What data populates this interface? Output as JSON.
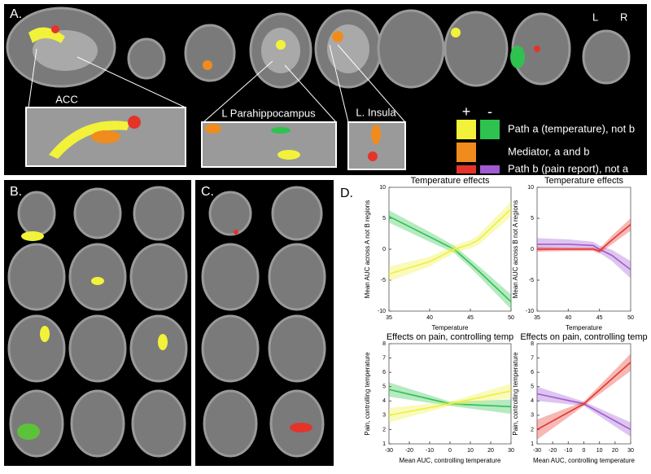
{
  "figure": {
    "panel_labels": [
      "A.",
      "B.",
      "C.",
      "D."
    ],
    "orientation": [
      "L",
      "R"
    ],
    "inset_labels": [
      "ACC",
      "L Parahippocampus",
      "L. Insula"
    ],
    "legend": {
      "signs": [
        "+",
        "-"
      ],
      "items": [
        "Path a (temperature), not b",
        "Mediator, a and b",
        "Path b (pain report), not a"
      ]
    }
  },
  "chart_data": [
    {
      "type": "line",
      "title": "Temperature effects",
      "ylabel": "Mean AUC across A not B regions",
      "xlabel": "Temperature",
      "x": [
        35,
        40,
        43,
        45,
        46,
        50
      ],
      "xlim": [
        35,
        50
      ],
      "xticks": [
        35,
        40,
        45,
        50
      ],
      "ylim": [
        -10,
        10
      ],
      "yticks": [
        -10,
        -5,
        0,
        5,
        10
      ],
      "series": [
        {
          "color": "#2ec24f",
          "values": [
            5.3,
            2,
            0,
            -2.3,
            -3.5,
            -8.5
          ],
          "errors": [
            1,
            0.8,
            0.6,
            0.7,
            0.8,
            1.2
          ]
        },
        {
          "color": "#eef03c",
          "values": [
            -4,
            -2,
            0,
            0.8,
            1.5,
            6.5
          ],
          "errors": [
            1.2,
            0.8,
            0.6,
            0.7,
            0.8,
            1.2
          ]
        }
      ]
    },
    {
      "type": "line",
      "title": "Temperature effects",
      "ylabel": "Mean AUC across B not A regions",
      "xlabel": "Temperature",
      "x": [
        35,
        40,
        44,
        45,
        47,
        50
      ],
      "xlim": [
        35,
        50
      ],
      "xticks": [
        35,
        40,
        45,
        50
      ],
      "ylim": [
        -10,
        10
      ],
      "yticks": [
        -10,
        -5,
        0,
        5,
        10
      ],
      "series": [
        {
          "color": "#a05ad2",
          "values": [
            0.8,
            0.8,
            0.6,
            0,
            -1,
            -3.3
          ],
          "errors": [
            1,
            0.8,
            0.6,
            0.6,
            0.9,
            1.4
          ]
        },
        {
          "color": "#e5332a",
          "values": [
            0,
            0,
            0,
            -0.3,
            1.5,
            4
          ],
          "errors": [
            0.4,
            0.3,
            0.3,
            0.4,
            0.7,
            1
          ]
        }
      ]
    },
    {
      "type": "line",
      "title": "Effects on pain, controlling temp",
      "ylabel": "Pain, controlling temperature",
      "xlabel": "Mean AUC, controlling temperature",
      "x": [
        -30,
        0,
        30
      ],
      "xlim": [
        -30,
        30
      ],
      "xticks": [
        -30,
        -20,
        -10,
        0,
        10,
        20,
        30
      ],
      "ylim": [
        1,
        8
      ],
      "yticks": [
        1,
        2,
        3,
        4,
        5,
        6,
        7,
        8
      ],
      "series": [
        {
          "color": "#2ec24f",
          "values": [
            4.8,
            3.8,
            3.6
          ],
          "errors": [
            0.5,
            0.15,
            0.5
          ]
        },
        {
          "color": "#eef03c",
          "values": [
            3,
            3.8,
            4.7
          ],
          "errors": [
            0.5,
            0.15,
            0.5
          ]
        }
      ]
    },
    {
      "type": "line",
      "title": "Effects on pain, controlling temp",
      "ylabel": "Pain, controlling temperature",
      "xlabel": "Mean AUC, controlling temperature",
      "x": [
        -30,
        0,
        30
      ],
      "xlim": [
        -30,
        30
      ],
      "xticks": [
        -30,
        -20,
        -10,
        0,
        10,
        20,
        30
      ],
      "ylim": [
        1,
        8
      ],
      "yticks": [
        1,
        2,
        3,
        4,
        5,
        6,
        7,
        8
      ],
      "series": [
        {
          "color": "#a05ad2",
          "values": [
            4.5,
            3.8,
            2
          ],
          "errors": [
            0.5,
            0.15,
            0.5
          ]
        },
        {
          "color": "#e5332a",
          "values": [
            2,
            3.8,
            6.7
          ],
          "errors": [
            0.7,
            0.15,
            0.6
          ]
        }
      ]
    }
  ]
}
